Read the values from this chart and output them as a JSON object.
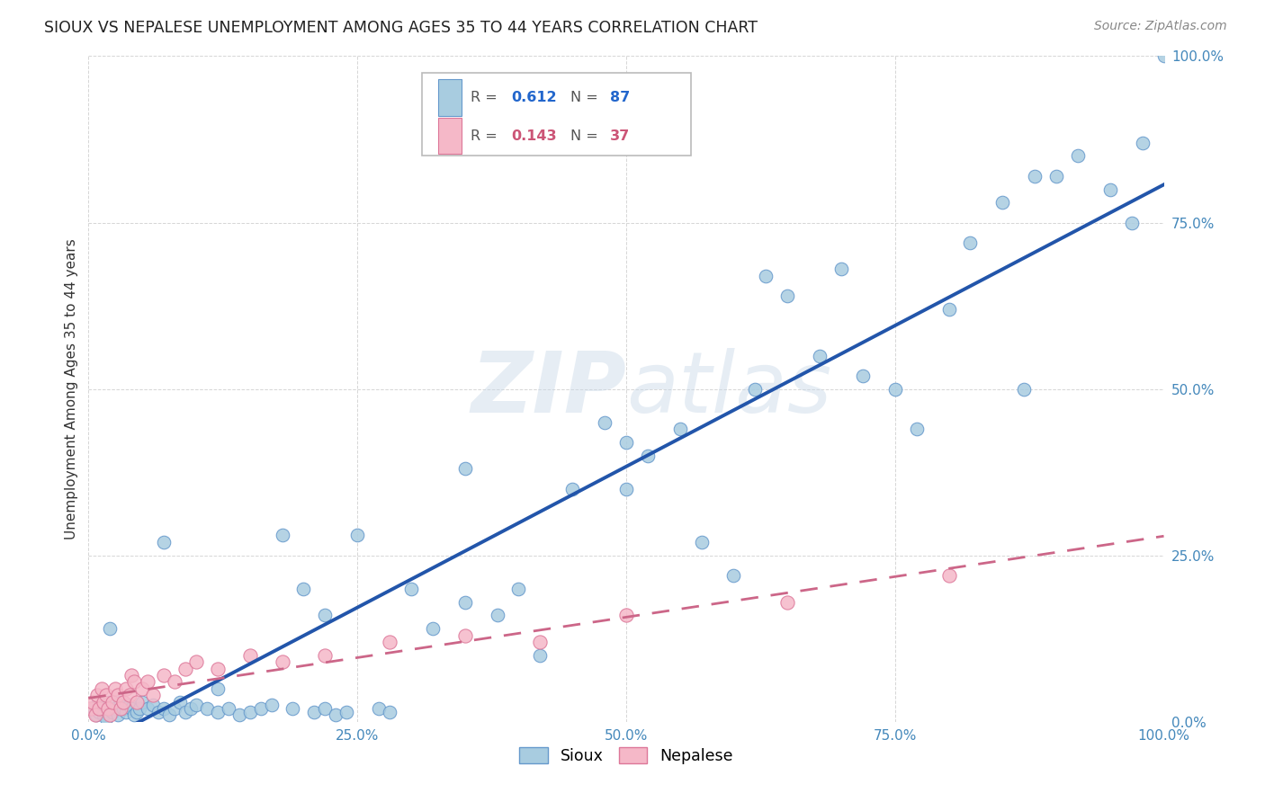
{
  "title": "SIOUX VS NEPALESE UNEMPLOYMENT AMONG AGES 35 TO 44 YEARS CORRELATION CHART",
  "source": "Source: ZipAtlas.com",
  "ylabel": "Unemployment Among Ages 35 to 44 years",
  "xlim": [
    0.0,
    1.0
  ],
  "ylim": [
    0.0,
    1.0
  ],
  "xticks": [
    0.0,
    0.25,
    0.5,
    0.75,
    1.0
  ],
  "yticks": [
    0.0,
    0.25,
    0.5,
    0.75,
    1.0
  ],
  "xticklabels": [
    "0.0%",
    "25.0%",
    "50.0%",
    "75.0%",
    "100.0%"
  ],
  "yticklabels": [
    "0.0%",
    "25.0%",
    "50.0%",
    "75.0%",
    "100.0%"
  ],
  "sioux_color": "#a8cce0",
  "nepalese_color": "#f5b8c8",
  "sioux_edge_color": "#6699cc",
  "nepalese_edge_color": "#dd7799",
  "sioux_line_color": "#2255aa",
  "nepalese_line_color": "#cc6688",
  "background_color": "#ffffff",
  "watermark_zip": "ZIP",
  "watermark_atlas": "atlas",
  "legend_R_sioux": "R = 0.612",
  "legend_N_sioux": "N = 87",
  "legend_R_nepalese": "R = 0.143",
  "legend_N_nepalese": "N = 37",
  "sioux_x": [
    0.005,
    0.007,
    0.009,
    0.01,
    0.012,
    0.014,
    0.015,
    0.016,
    0.018,
    0.02,
    0.022,
    0.025,
    0.027,
    0.03,
    0.032,
    0.035,
    0.038,
    0.04,
    0.042,
    0.045,
    0.047,
    0.05,
    0.055,
    0.06,
    0.065,
    0.07,
    0.075,
    0.08,
    0.085,
    0.09,
    0.095,
    0.1,
    0.11,
    0.12,
    0.13,
    0.14,
    0.15,
    0.16,
    0.17,
    0.18,
    0.19,
    0.2,
    0.21,
    0.22,
    0.23,
    0.24,
    0.25,
    0.27,
    0.28,
    0.3,
    0.32,
    0.35,
    0.38,
    0.4,
    0.42,
    0.45,
    0.48,
    0.5,
    0.52,
    0.55,
    0.57,
    0.6,
    0.62,
    0.63,
    0.65,
    0.68,
    0.7,
    0.72,
    0.75,
    0.77,
    0.8,
    0.82,
    0.85,
    0.87,
    0.88,
    0.9,
    0.92,
    0.95,
    0.97,
    0.98,
    1.0,
    0.02,
    0.07,
    0.12,
    0.22,
    0.35,
    0.5
  ],
  "sioux_y": [
    0.02,
    0.01,
    0.03,
    0.015,
    0.02,
    0.01,
    0.025,
    0.005,
    0.02,
    0.03,
    0.015,
    0.02,
    0.01,
    0.03,
    0.02,
    0.015,
    0.025,
    0.02,
    0.01,
    0.015,
    0.02,
    0.03,
    0.02,
    0.025,
    0.015,
    0.02,
    0.01,
    0.02,
    0.03,
    0.015,
    0.02,
    0.025,
    0.02,
    0.015,
    0.02,
    0.01,
    0.015,
    0.02,
    0.025,
    0.28,
    0.02,
    0.2,
    0.015,
    0.02,
    0.01,
    0.015,
    0.28,
    0.02,
    0.015,
    0.2,
    0.14,
    0.38,
    0.16,
    0.2,
    0.1,
    0.35,
    0.45,
    0.42,
    0.4,
    0.44,
    0.27,
    0.22,
    0.5,
    0.67,
    0.64,
    0.55,
    0.68,
    0.52,
    0.5,
    0.44,
    0.62,
    0.72,
    0.78,
    0.5,
    0.82,
    0.82,
    0.85,
    0.8,
    0.75,
    0.87,
    1.0,
    0.14,
    0.27,
    0.05,
    0.16,
    0.18,
    0.35
  ],
  "nepalese_x": [
    0.002,
    0.004,
    0.006,
    0.008,
    0.01,
    0.012,
    0.014,
    0.016,
    0.018,
    0.02,
    0.022,
    0.025,
    0.027,
    0.03,
    0.032,
    0.035,
    0.038,
    0.04,
    0.042,
    0.045,
    0.05,
    0.055,
    0.06,
    0.07,
    0.08,
    0.09,
    0.1,
    0.12,
    0.15,
    0.18,
    0.22,
    0.28,
    0.35,
    0.42,
    0.5,
    0.65,
    0.8
  ],
  "nepalese_y": [
    0.02,
    0.03,
    0.01,
    0.04,
    0.02,
    0.05,
    0.03,
    0.04,
    0.02,
    0.01,
    0.03,
    0.05,
    0.04,
    0.02,
    0.03,
    0.05,
    0.04,
    0.07,
    0.06,
    0.03,
    0.05,
    0.06,
    0.04,
    0.07,
    0.06,
    0.08,
    0.09,
    0.08,
    0.1,
    0.09,
    0.1,
    0.12,
    0.13,
    0.12,
    0.16,
    0.18,
    0.22
  ]
}
